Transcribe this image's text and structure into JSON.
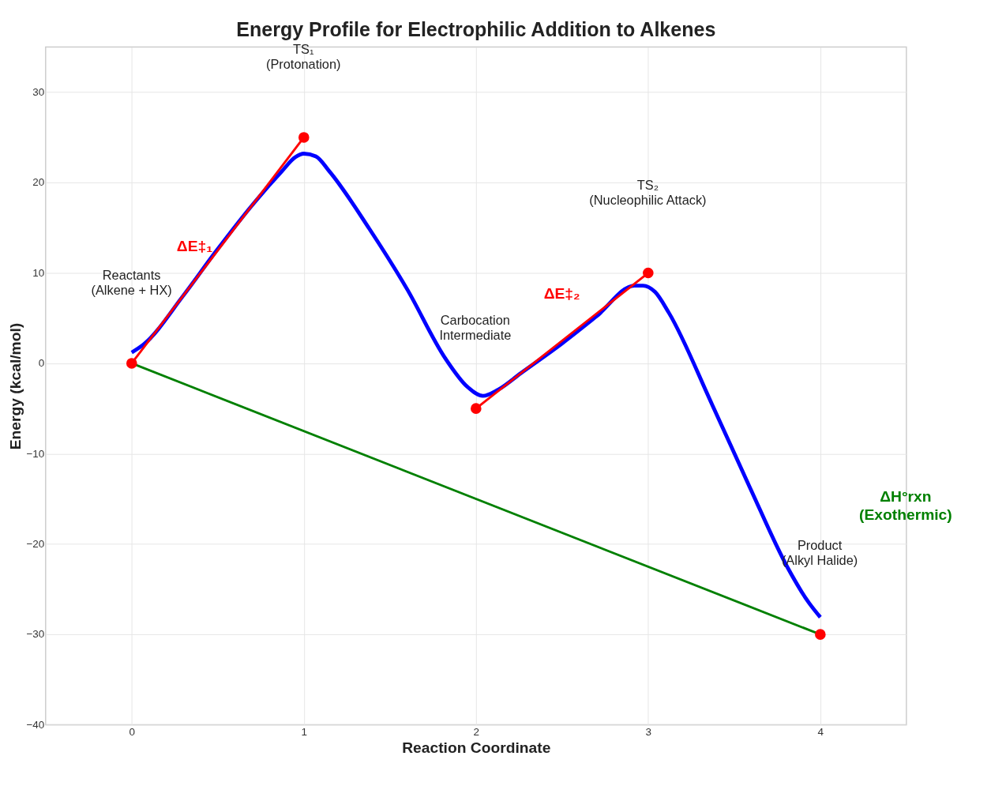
{
  "chart_data": {
    "type": "line",
    "title": "Energy Profile for Electrophilic Addition to Alkenes",
    "xlabel": "Reaction Coordinate",
    "ylabel": "Energy (kcal/mol)",
    "series": [
      {
        "color": "#0000ff",
        "x": [
          0,
          0.07,
          0.3,
          0.49,
          0.7,
          0.87,
          0.95,
          1.0,
          1.07,
          1.15,
          1.38,
          1.6,
          1.82,
          1.95,
          2.04,
          2.13,
          2.26,
          2.5,
          2.7,
          2.92,
          2.97,
          3.04,
          3.12,
          3.37,
          3.59,
          3.81,
          3.93,
          4.0
        ],
        "values": [
          1.2,
          2.1,
          7.5,
          12.4,
          17.5,
          21.2,
          22.8,
          23.2,
          22.9,
          21.2,
          14.9,
          8.2,
          0.6,
          -2.6,
          -3.6,
          -2.9,
          -1.1,
          2.2,
          5.2,
          8.6,
          8.6,
          7.9,
          5.6,
          -4.5,
          -13.7,
          -22.6,
          -26.4,
          -28.1
        ]
      },
      {
        "color": "#ff0000",
        "marker": "triangle",
        "x": [
          0,
          1
        ],
        "values": [
          0,
          25
        ]
      },
      {
        "color": "#ff0000",
        "marker": "triangle",
        "x": [
          2,
          3
        ],
        "values": [
          -5,
          10
        ]
      },
      {
        "color": "#008000",
        "marker": "triangle",
        "x": [
          0,
          4
        ],
        "values": [
          0,
          -30
        ]
      },
      {
        "type": "scatter",
        "color": "#ff0000",
        "x": [
          0,
          1,
          2,
          3,
          4
        ],
        "values": [
          0,
          25,
          -5,
          10,
          -30
        ]
      }
    ],
    "annotations": [
      "Reactants\n(Alkene + HX)",
      "TS₁\n(Protonation)",
      "Carbocation\nIntermediate",
      "TS₂\n(Nucleophilic Attack)",
      "Product\n(Alkyl Halide)",
      "ΔE‡₁",
      "ΔE‡₂",
      "ΔH°rxn\n(Exothermic)"
    ],
    "xlim": [
      -0.5,
      4.5
    ],
    "ylim": [
      -40,
      35
    ],
    "xticks": [
      0,
      1,
      2,
      3,
      4
    ],
    "yticks": [
      -40,
      -30,
      -20,
      -10,
      0,
      10,
      20,
      30
    ],
    "grid": true
  }
}
